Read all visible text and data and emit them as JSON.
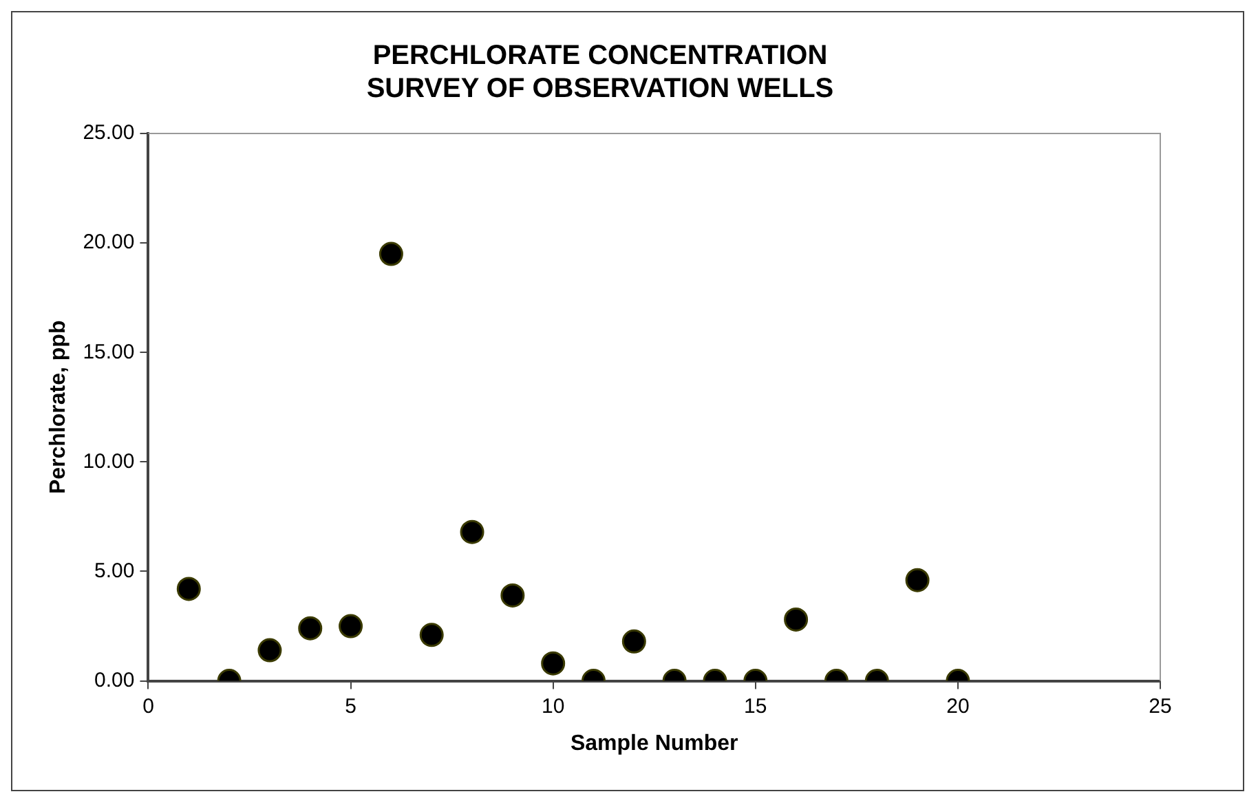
{
  "chart_data": {
    "type": "scatter",
    "title": "PERCHLORATE CONCENTRATION\nSURVEY OF OBSERVATION WELLS",
    "xlabel": "Sample Number",
    "ylabel": "Perchlorate, ppb",
    "x": [
      1,
      2,
      3,
      4,
      5,
      6,
      7,
      8,
      9,
      10,
      11,
      12,
      13,
      14,
      15,
      16,
      17,
      18,
      19,
      20
    ],
    "values": [
      4.2,
      0,
      1.4,
      2.4,
      2.5,
      19.5,
      2.1,
      6.8,
      3.9,
      0.8,
      0,
      1.8,
      0,
      0,
      0,
      2.8,
      0,
      0,
      4.6,
      0
    ],
    "color": "#000000",
    "marker": "circle",
    "xlim": [
      0,
      25
    ],
    "xticks": [
      0,
      5,
      10,
      15,
      20,
      25
    ],
    "ylim": [
      0,
      25
    ],
    "yticks": [
      {
        "value": 0,
        "label": "0.00"
      },
      {
        "value": 5,
        "label": "5.00"
      },
      {
        "value": 10,
        "label": "10.00"
      },
      {
        "value": 15,
        "label": "15.00"
      },
      {
        "value": 20,
        "label": "20.00"
      },
      {
        "value": 25,
        "label": "25.00"
      }
    ],
    "grid": false,
    "legend": false
  }
}
